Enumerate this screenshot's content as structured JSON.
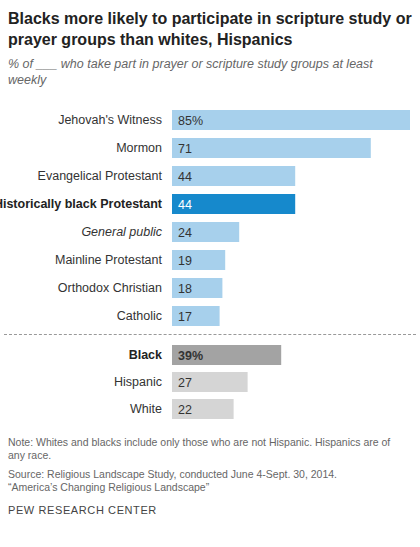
{
  "chart_data": {
    "type": "bar",
    "orientation": "horizontal",
    "title": "Blacks more likely to participate in scripture study or prayer groups than whites, Hispanics",
    "subtitle": "% of ___ who take part in prayer or scripture study groups at least weekly",
    "categories": [
      "Jehovah's Witness",
      "Mormon",
      "Evangelical Protestant",
      "Historically black Protestant",
      "General public",
      "Mainline Protestant",
      "Orthodox Christian",
      "Catholic",
      "Black",
      "Hispanic",
      "White"
    ],
    "values": [
      85,
      71,
      44,
      44,
      24,
      19,
      18,
      17,
      39,
      27,
      22
    ],
    "value_labels": [
      "85%",
      "71",
      "44",
      "44",
      "24",
      "19",
      "18",
      "17",
      "39%",
      "27",
      "22"
    ],
    "colors": [
      "#a7d0ec",
      "#a7d0ec",
      "#a7d0ec",
      "#1689cc",
      "#a7d0ec",
      "#a7d0ec",
      "#a7d0ec",
      "#a7d0ec",
      "#a3a3a3",
      "#d5d5d5",
      "#d5d5d5"
    ],
    "xlim": [
      0,
      85
    ],
    "tick_labels": false,
    "data_labels": true,
    "notes": [
      "Note: Whites and blacks include only those who are not Hispanic. Hispanics are of any race.",
      "Source: Religious Landscape Study, conducted June 4-Sept. 30, 2014.",
      "“America’s Changing Religious Landscape”"
    ],
    "credit": "PEW RESEARCH CENTER"
  }
}
